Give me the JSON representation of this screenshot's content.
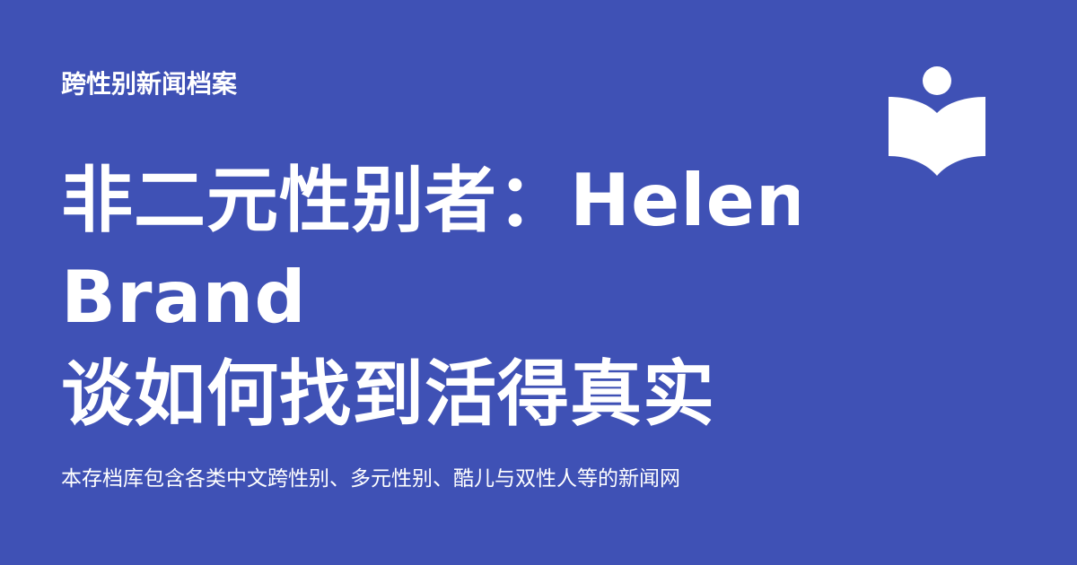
{
  "header": {
    "site_name": "跨性别新闻档案"
  },
  "article": {
    "title_lines": [
      "非二元性别者：Helen",
      "Brand",
      "谈如何找到活得真实"
    ],
    "description": "本存档库包含各类中文跨性别、多元性别、酷儿与双性人等的新闻网"
  },
  "logo": {
    "icon": "open-book-with-person-icon",
    "color": "#ffffff"
  },
  "theme": {
    "background": "#3f51b5",
    "text": "#ffffff"
  }
}
